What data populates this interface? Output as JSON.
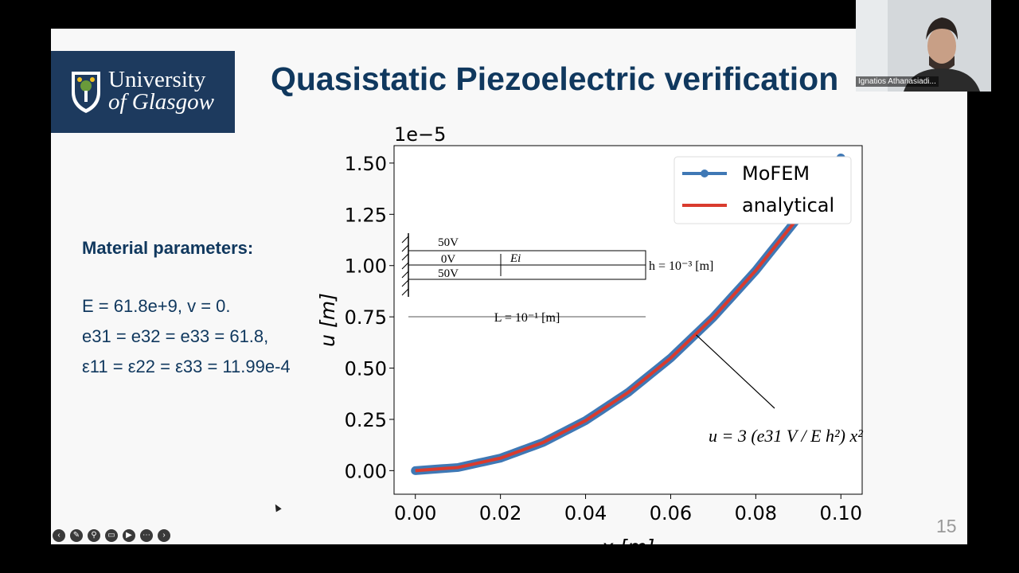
{
  "slide": {
    "logo": {
      "line1": "University",
      "line2": "of Glasgow"
    },
    "title": "Quasistatic Piezoelectric verification",
    "material": {
      "heading": "Material parameters:",
      "line1": "E = 61.8e+9, v = 0.",
      "line2": "e31 = e32 = e33 = 61.8,",
      "line3": "ε11 = ε22 = ε33 = 11.99e-4"
    },
    "page_number": "15"
  },
  "webcam": {
    "name": "Ignatios Athanasiadi..."
  },
  "toolbar": [
    "back-icon",
    "pen-icon",
    "zoom-icon",
    "captions-icon",
    "video-icon",
    "more-icon",
    "forward-icon"
  ],
  "chart_data": {
    "type": "line",
    "xlabel": "x [m]",
    "ylabel": "u [m]",
    "y_scale_label": "1e−5",
    "xlim": [
      -0.005,
      0.105
    ],
    "ylim": [
      -1.15e-06,
      1.585e-05
    ],
    "xticks": [
      "0.00",
      "0.02",
      "0.04",
      "0.06",
      "0.08",
      "0.10"
    ],
    "yticks": [
      "0.00",
      "0.25",
      "0.50",
      "0.75",
      "1.00",
      "1.25",
      "1.50"
    ],
    "series": [
      {
        "name": "MoFEM",
        "color": "#3f78b5",
        "style": "markers",
        "x": [
          0.0,
          0.01,
          0.02,
          0.03,
          0.04,
          0.05,
          0.06,
          0.07,
          0.08,
          0.09,
          0.1
        ],
        "y": [
          0.0,
          1.525e-07,
          6.1e-07,
          1.3725e-06,
          2.44e-06,
          3.8125e-06,
          5.49e-06,
          7.4725e-06,
          9.76e-06,
          1.23525e-05,
          1.525e-05
        ]
      },
      {
        "name": "analytical",
        "color": "#d93b2e",
        "style": "line",
        "x": [
          0.0,
          0.01,
          0.02,
          0.03,
          0.04,
          0.05,
          0.06,
          0.07,
          0.08,
          0.09,
          0.1
        ],
        "y": [
          0.0,
          1.525e-07,
          6.1e-07,
          1.3725e-06,
          2.44e-06,
          3.8125e-06,
          5.49e-06,
          7.4725e-06,
          9.76e-06,
          1.23525e-05,
          1.525e-05
        ]
      }
    ],
    "legend_position": "top-right",
    "inset": {
      "top_voltage": "50V",
      "mid_voltage": "0V",
      "bottom_voltage": "50V",
      "field_label": "Ei",
      "thickness_label": "h = 10⁻³ [m]",
      "length_label": "L = 10⁻¹ [m]"
    },
    "annotation": "u = 3 (e31 V / E h²) x²"
  }
}
